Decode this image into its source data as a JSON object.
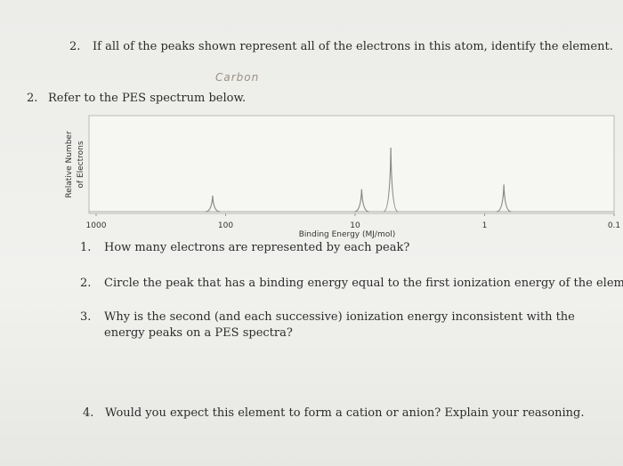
{
  "top_question": {
    "number": "2.",
    "text": "If all of the peaks shown represent all of the electrons in this atom, identify the element.",
    "answer": "Carbon"
  },
  "prompt": {
    "number": "2.",
    "text": "Refer to the PES spectrum below."
  },
  "chart_data": {
    "type": "pes",
    "xlabel": "Binding Energy (MJ/mol)",
    "ylabel": [
      "Relative Number",
      "of Electrons"
    ],
    "xscale": "log",
    "xlim": [
      1000,
      0.1
    ],
    "xticks": [
      1000,
      100,
      10,
      1,
      0.1
    ],
    "ylim": [
      0,
      6
    ],
    "color": "#8a8a88",
    "x": [
      126,
      8.9,
      5.3,
      0.71
    ],
    "values": [
      1,
      1.4,
      4,
      1.7
    ]
  },
  "questions": [
    {
      "number": "1.",
      "text": "How many electrons are represented by each peak?"
    },
    {
      "number": "2.",
      "text": "Circle the peak that has a binding energy equal to the first ionization energy of the element."
    },
    {
      "number": "3.",
      "text": "Why is the second (and each successive) ionization energy inconsistent with the energy peaks on a PES spectra?"
    },
    {
      "number": "4.",
      "text": "Would you expect this element to form a cation or anion? Explain your reasoning."
    }
  ]
}
